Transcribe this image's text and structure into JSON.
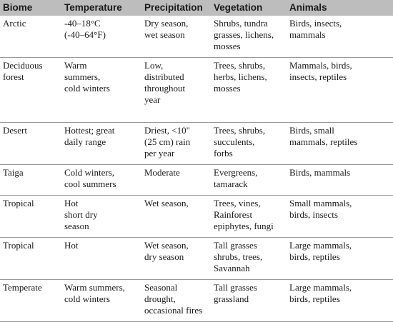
{
  "headers": [
    "Biome",
    "Temperature",
    "Precipitation",
    "Vegetation",
    "Animals"
  ],
  "rows": [
    [
      "Arctic",
      "-40–18°C\n(-40–64°F)",
      "Dry season,\nwet season",
      "Shrubs, tundra\ngrasses, lichens,\nmosses",
      "Birds, insects,\nmammals"
    ],
    [
      "Deciduous\nforest",
      "Warm\nsummers,\ncold winters",
      "Low,\ndistributed\nthroughout\nyear",
      "Trees, shrubs,\nherbs, lichens,\nmosses",
      "Mammals, birds,\ninsects, reptiles"
    ],
    [
      "Desert",
      "Hottest; great\ndaily range",
      "Driest, <10\"\n(25 cm) rain\nper year",
      "Trees, shrubs,\nsucculents,\nforbs",
      "Birds, small\nmammals, reptiles"
    ],
    [
      "Taiga",
      "Cold winters,\ncool summers",
      "Moderate",
      "Evergreens,\ntamarack",
      "Birds, mammals"
    ],
    [
      "Tropical",
      "Hot\nshort dry\nseason",
      "Wet season,",
      "Trees, vines,\nRainforest\nepiphytes, fungi",
      "Small mammals,\nbirds, insects"
    ],
    [
      "Tropical",
      "Hot",
      "Wet season,\ndry season",
      "Tall grasses\nshrubs, trees,\nSavannah",
      "Large mammals,\nbirds, reptiles"
    ],
    [
      "Temperate",
      "Warm summers,\ncold winters",
      "Seasonal\ndrought,\noccasional fires",
      "Tall grasses\ngrassland",
      "Large mammals,\nbirds, reptiles"
    ]
  ]
}
